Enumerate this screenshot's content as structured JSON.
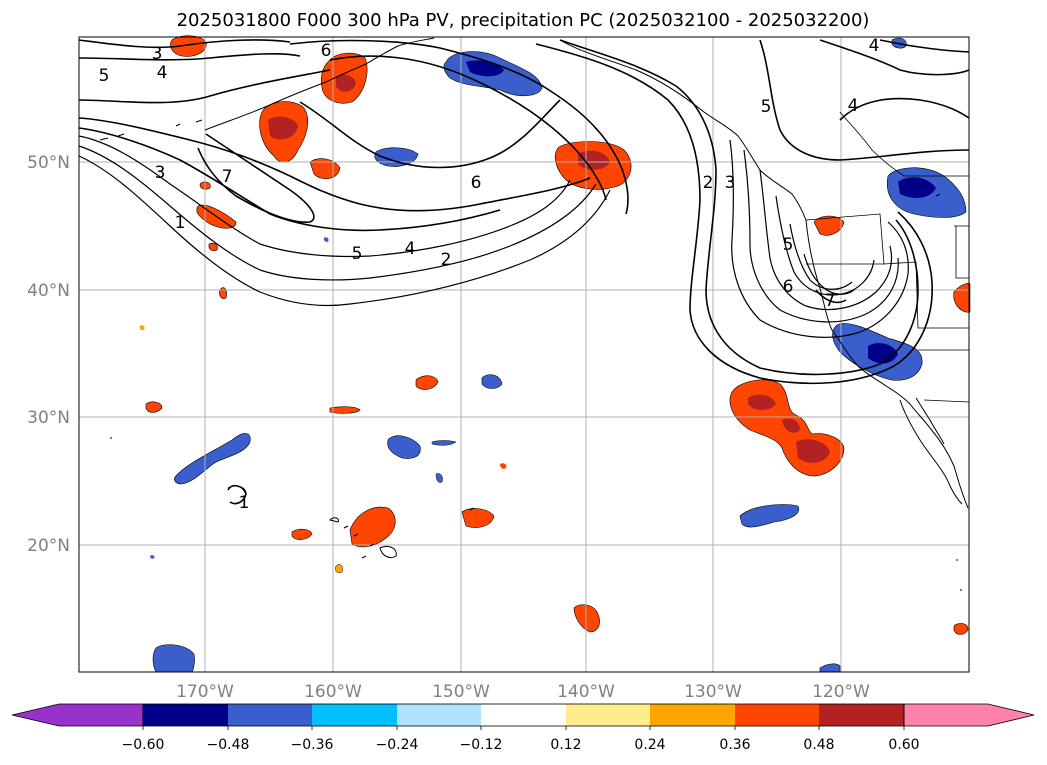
{
  "map": {
    "title": "2025031800 F000 300 hPa PV, precipitation PC (2025032100 - 2025032200)",
    "lon_labels": [
      "170°W",
      "160°W",
      "150°W",
      "140°W",
      "130°W",
      "120°W"
    ],
    "lat_labels": [
      "50°N",
      "40°N",
      "30°N",
      "20°N"
    ],
    "contour_labels": [
      "5",
      "3",
      "6",
      "4",
      "3",
      "7",
      "1",
      "5",
      "4",
      "2",
      "6",
      "2",
      "3",
      "5",
      "4",
      "4",
      "5",
      "6",
      "7",
      "1"
    ],
    "colorbar": {
      "tick_labels": [
        "−0.60",
        "−0.48",
        "−0.36",
        "−0.24",
        "−0.12",
        "0.12",
        "0.24",
        "0.36",
        "0.48",
        "0.60"
      ],
      "colors": [
        "#9932cc",
        "#00008b",
        "#3a5fcd",
        "#00bfff",
        "#b0e2ff",
        "#ffffff",
        "#ffec8b",
        "#ffa500",
        "#ff4500",
        "#b22222",
        "#ff82ab"
      ]
    },
    "colors": {
      "grid": "#b0b0b0",
      "coast": "#000000",
      "contour": "#000000"
    }
  }
}
